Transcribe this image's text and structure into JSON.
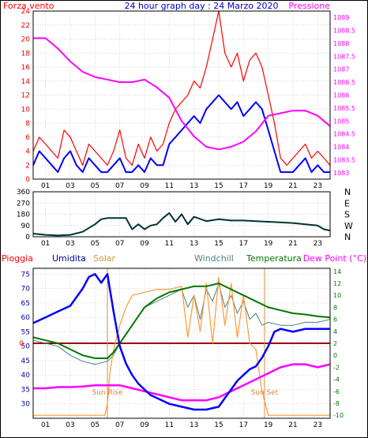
{
  "colors": {
    "wind": "#ff0000",
    "wind_avg": "#0000ff",
    "pressure": "#ff00ff",
    "direction": "#003333",
    "humidity": "#0000ff",
    "solar": "#ff9933",
    "windchill": "#4f7f7f",
    "temperature": "#007700",
    "dewpoint": "#ff00ff",
    "rain": "#ff0000",
    "zero_line": "#990000",
    "sun_lines": "#dd8844",
    "grid": "#c8c8c8",
    "frame": "#000000",
    "title": "#0000cc"
  },
  "chart_data": [
    {
      "type": "line",
      "title": "24 hour graph day : 24 Marzo 2020",
      "ylabel_left": "Forza vento",
      "ylabel_right": "Pressione",
      "xlim": [
        0,
        24
      ],
      "x_ticks": [
        "01",
        "03",
        "05",
        "07",
        "09",
        "11",
        "13",
        "15",
        "17",
        "19",
        "21",
        "23"
      ],
      "ylim_left": [
        0,
        24
      ],
      "y_ticks_left": [
        "0",
        "2",
        "4",
        "6",
        "8",
        "10",
        "12",
        "14",
        "16",
        "18",
        "20",
        "22",
        "24"
      ],
      "ylim_right": [
        1082.75,
        1089.25
      ],
      "y_ticks_right": [
        "1083",
        "1083.5",
        "1084",
        "1084.5",
        "1085",
        "1085.5",
        "1086",
        "1086.5",
        "1087",
        "1087.5",
        "1088",
        "1088.5",
        "1089"
      ],
      "series": [
        {
          "name": "Forza vento",
          "axis": "left",
          "x": [
            0,
            0.5,
            1,
            1.5,
            2,
            2.5,
            3,
            3.5,
            4,
            4.5,
            5,
            5.5,
            6,
            6.5,
            7,
            7.5,
            8,
            8.5,
            9,
            9.5,
            10,
            10.5,
            11,
            11.5,
            12,
            12.5,
            13,
            13.5,
            14,
            14.5,
            15,
            15.5,
            16,
            16.5,
            17,
            17.5,
            18,
            18.5,
            19,
            19.5,
            20,
            20.5,
            21,
            21.5,
            22,
            22.5,
            23,
            23.5,
            24
          ],
          "values": [
            4,
            6,
            5,
            4,
            3,
            7,
            6,
            4,
            2,
            5,
            4,
            3,
            2,
            4,
            7,
            3,
            2,
            5,
            3,
            6,
            4,
            5,
            8,
            10,
            11,
            12,
            14,
            13,
            16,
            20,
            24,
            18,
            16,
            18,
            14,
            17,
            18,
            16,
            12,
            8,
            3,
            2,
            3,
            4,
            5,
            3,
            4,
            3,
            2
          ]
        },
        {
          "name": "Media",
          "axis": "left",
          "x": [
            0,
            0.5,
            1,
            1.5,
            2,
            2.5,
            3,
            3.5,
            4,
            4.5,
            5,
            5.5,
            6,
            6.5,
            7,
            7.5,
            8,
            8.5,
            9,
            9.5,
            10,
            10.5,
            11,
            11.5,
            12,
            12.5,
            13,
            13.5,
            14,
            14.5,
            15,
            15.5,
            16,
            16.5,
            17,
            17.5,
            18,
            18.5,
            19,
            19.5,
            20,
            20.5,
            21,
            21.5,
            22,
            22.5,
            23,
            23.5,
            24
          ],
          "values": [
            2,
            4,
            3,
            2,
            1,
            3,
            4,
            2,
            1,
            3,
            2,
            1,
            1,
            2,
            3,
            1,
            1,
            2,
            1,
            3,
            2,
            2,
            5,
            6,
            7,
            8,
            9,
            8,
            10,
            11,
            12,
            11,
            10,
            11,
            9,
            10,
            11,
            10,
            7,
            4,
            1,
            1,
            1,
            2,
            3,
            1,
            2,
            1,
            1
          ]
        },
        {
          "name": "Pressione",
          "axis": "right",
          "x": [
            0,
            1,
            2,
            3,
            4,
            5,
            6,
            7,
            8,
            9,
            10,
            11,
            12,
            13,
            14,
            15,
            16,
            17,
            18,
            19,
            20,
            21,
            22,
            23,
            24
          ],
          "values": [
            1088.2,
            1088.2,
            1087.8,
            1087.3,
            1086.9,
            1086.7,
            1086.6,
            1086.5,
            1086.5,
            1086.6,
            1086.3,
            1085.9,
            1085.0,
            1084.4,
            1084.0,
            1083.9,
            1084.0,
            1084.2,
            1084.6,
            1085.2,
            1085.3,
            1085.4,
            1085.4,
            1085.2,
            1084.8
          ]
        }
      ]
    },
    {
      "type": "line",
      "xlim": [
        0,
        24
      ],
      "x_ticks": [
        "01",
        "03",
        "05",
        "07",
        "09",
        "11",
        "13",
        "15",
        "17",
        "19",
        "21",
        "23"
      ],
      "ylim": [
        0,
        360
      ],
      "y_ticks": [
        "0",
        "90",
        "180",
        "270",
        "360"
      ],
      "y_ticks_right": [
        "N",
        "E",
        "S",
        "W",
        "N"
      ],
      "series": [
        {
          "name": "Direzione vento",
          "x": [
            0,
            1,
            2,
            3,
            4,
            5,
            5.5,
            6,
            6.5,
            7,
            7.5,
            8,
            8.5,
            9,
            9.5,
            10,
            10.5,
            11,
            11.5,
            12,
            12.5,
            13,
            14,
            15,
            16,
            17,
            18,
            19,
            20,
            21,
            22,
            23,
            23.5,
            24
          ],
          "values": [
            25,
            15,
            10,
            15,
            40,
            100,
            140,
            150,
            150,
            150,
            150,
            60,
            100,
            60,
            90,
            100,
            150,
            190,
            120,
            180,
            100,
            160,
            125,
            140,
            130,
            130,
            125,
            120,
            115,
            110,
            100,
            90,
            60,
            50
          ]
        }
      ]
    },
    {
      "type": "line",
      "xlim": [
        0,
        24
      ],
      "x_ticks": [
        "01",
        "03",
        "05",
        "07",
        "09",
        "11",
        "13",
        "15",
        "17",
        "19",
        "21",
        "23"
      ],
      "ylim_left": [
        25,
        77
      ],
      "y_ticks_left": [
        "30",
        "35",
        "40",
        "45",
        "50",
        "55",
        "60",
        "65",
        "70",
        "75"
      ],
      "ylim_right": [
        -10.5,
        14.5
      ],
      "y_ticks_right": [
        "-10",
        "-8",
        "-6",
        "-4",
        "-2",
        "0",
        "2",
        "4",
        "6",
        "8",
        "10",
        "12",
        "14"
      ],
      "legend": [
        "Pioggia",
        "Umidita",
        "Solar",
        "Windchill",
        "Temperatura",
        "Dew Point (°C)"
      ],
      "rain_value": "0",
      "annotations": [
        {
          "text": "Sun Rise",
          "x": 6.0
        },
        {
          "text": "Sun Set",
          "x": 18.7
        }
      ],
      "series": [
        {
          "name": "Umidita",
          "axis": "left",
          "x": [
            0,
            1,
            2,
            3,
            4,
            4.5,
            5,
            5.5,
            6,
            6.5,
            7,
            7.5,
            8,
            8.5,
            9,
            9.5,
            10,
            11,
            12,
            13,
            14,
            15,
            15.5,
            16,
            16.5,
            17,
            17.5,
            18,
            18.5,
            19,
            19.5,
            20,
            21,
            22,
            23,
            24
          ],
          "values": [
            58,
            60,
            62,
            64,
            70,
            74,
            75,
            72,
            75,
            62,
            50,
            44,
            40,
            37,
            35,
            33,
            32,
            30,
            29,
            28,
            28,
            29,
            32,
            35,
            38,
            40,
            42,
            43,
            46,
            50,
            55,
            56,
            55,
            56,
            56,
            56
          ]
        },
        {
          "name": "Solar",
          "axis": "right",
          "x": [
            0,
            5,
            5.8,
            6,
            6.2,
            6.5,
            7,
            7.5,
            8,
            9,
            10,
            11,
            12,
            12.5,
            13,
            13.5,
            14,
            14.5,
            15,
            15.5,
            16,
            16.5,
            17,
            17.5,
            18,
            18.5,
            19,
            20,
            24
          ],
          "values": [
            -10,
            -10,
            -10,
            -8,
            -3,
            1,
            5,
            8,
            10,
            10.5,
            11,
            11,
            11.5,
            3,
            10,
            4,
            12,
            2,
            13,
            5,
            12,
            3,
            10,
            2,
            1,
            -6,
            -10,
            -10,
            -10
          ]
        },
        {
          "name": "Windchill",
          "axis": "right",
          "x": [
            0,
            1,
            2,
            3,
            4,
            5,
            6,
            6.5,
            7,
            8,
            9,
            10,
            11,
            12,
            12.5,
            13,
            13.5,
            14,
            14.5,
            15,
            15.5,
            16,
            16.5,
            17,
            17.5,
            18,
            18.5,
            19,
            20,
            21,
            22,
            23,
            24
          ],
          "values": [
            2.5,
            2,
            1.5,
            0,
            -1,
            -1.5,
            -1,
            0,
            2,
            5,
            8,
            9,
            10,
            11,
            8,
            10,
            6,
            11,
            9,
            12,
            8,
            10,
            7,
            9,
            6,
            7,
            5,
            5.5,
            5,
            5,
            5.5,
            5.5,
            6
          ]
        },
        {
          "name": "Temperatura",
          "axis": "right",
          "x": [
            0,
            1,
            2,
            3,
            4,
            5,
            6,
            6.5,
            7,
            8,
            9,
            10,
            11,
            12,
            13,
            14,
            15,
            16,
            17,
            18,
            19,
            20,
            21,
            22,
            23,
            24
          ],
          "values": [
            3,
            2.5,
            2,
            1,
            0,
            -0.5,
            -0.5,
            0.5,
            2,
            5,
            8,
            9.5,
            10.5,
            11,
            11.5,
            11.5,
            12,
            11,
            10,
            9,
            8,
            7.5,
            7,
            6.8,
            6.5,
            6.3
          ]
        },
        {
          "name": "Dew Point (°C)",
          "axis": "right",
          "x": [
            0,
            1,
            2,
            3,
            4,
            5,
            6,
            7,
            8,
            9,
            10,
            11,
            12,
            13,
            14,
            15,
            16,
            17,
            18,
            19,
            20,
            21,
            22,
            23,
            24
          ],
          "values": [
            -5.5,
            -5.5,
            -5.3,
            -5.3,
            -5.2,
            -5,
            -5,
            -5,
            -5.5,
            -6,
            -6.5,
            -7,
            -7.5,
            -7.5,
            -7.5,
            -7,
            -6,
            -5,
            -4,
            -3,
            -2,
            -1.5,
            -1.5,
            -2,
            -1.5
          ]
        }
      ]
    }
  ]
}
